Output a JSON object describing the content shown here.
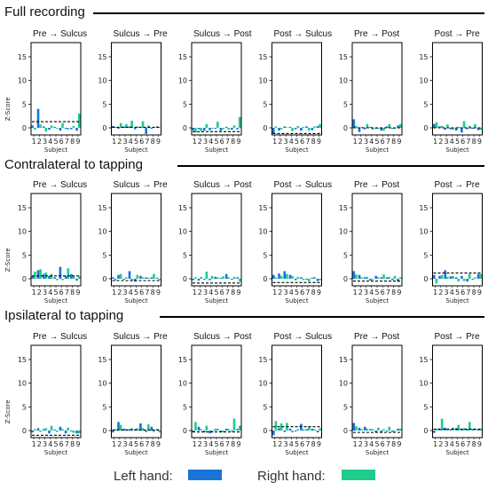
{
  "legend": {
    "left_label": "Left hand:",
    "right_label": "Right hand:",
    "left_color": "#1a73d9",
    "right_color": "#1fcc8c"
  },
  "chart_data": {
    "type": "bar",
    "ylabel": "Z-Score",
    "xlabel": "Subject",
    "yticks": [
      0,
      5,
      10,
      15
    ],
    "ylim": [
      -1.5,
      18
    ],
    "subjects": [
      "1",
      "2",
      "3",
      "4",
      "5",
      "6",
      "7",
      "8",
      "9"
    ],
    "series_names": [
      "Left hand",
      "Right hand"
    ],
    "sections": [
      {
        "title": "Full recording",
        "panels": [
          {
            "title": "Pre → Sulcus",
            "left": [
              0.5,
              4.0,
              0.3,
              -0.4,
              0.2,
              -0.6,
              -0.2,
              -0.3,
              -0.6
            ],
            "right": [
              -0.4,
              0.7,
              -0.8,
              0.5,
              -0.2,
              1.0,
              -0.4,
              0.4,
              3.0
            ],
            "threshold": 1.3
          },
          {
            "title": "Sulcus → Pre",
            "left": [
              0.4,
              -0.2,
              0.3,
              0.3,
              -0.3,
              0.1,
              -1.3,
              -0.2,
              0.3
            ],
            "right": [
              0.2,
              1.0,
              0.8,
              1.5,
              0.3,
              1.4,
              0.5,
              0.1,
              0.1
            ],
            "threshold": 0.1
          },
          {
            "title": "Sulcus → Post",
            "left": [
              -0.5,
              -0.3,
              -0.6,
              -0.5,
              -0.2,
              -0.6,
              0.2,
              -0.4,
              -0.3
            ],
            "right": [
              -1.0,
              -0.7,
              0.8,
              -0.2,
              1.3,
              -0.3,
              -0.4,
              0.5,
              2.3
            ],
            "threshold": -0.8
          },
          {
            "title": "Post → Sulcus",
            "left": [
              -1.2,
              -0.6,
              0.3,
              0.2,
              -0.3,
              -0.6,
              0.3,
              -0.5,
              0.4
            ],
            "right": [
              0.3,
              -0.3,
              0.1,
              -0.7,
              0.4,
              0.2,
              -0.6,
              0.3,
              0.8
            ],
            "threshold": -1.2
          },
          {
            "title": "Pre → Post",
            "left": [
              1.8,
              -0.9,
              -0.3,
              0.2,
              -0.2,
              -0.6,
              0.3,
              -0.2,
              0.5
            ],
            "right": [
              0.4,
              0.2,
              0.8,
              -0.4,
              -0.2,
              -0.6,
              0.8,
              -0.2,
              0.8
            ],
            "threshold": 0.0
          },
          {
            "title": "Post → Pre",
            "left": [
              0.8,
              0.3,
              -0.4,
              -0.3,
              -0.6,
              -1.0,
              -0.3,
              -0.2,
              -0.5
            ],
            "right": [
              1.2,
              0.4,
              0.7,
              -0.4,
              0.2,
              1.4,
              0.4,
              0.8,
              -0.4
            ],
            "threshold": 0.0
          }
        ]
      },
      {
        "title": "Contralateral to tapping",
        "panels": [
          {
            "title": "Pre → Sulcus",
            "left": [
              0.5,
              1.8,
              1.0,
              0.6,
              0.3,
              2.5,
              0.6,
              1.0,
              -0.4
            ],
            "right": [
              1.5,
              2.0,
              1.3,
              1.0,
              -0.3,
              -0.3,
              2.2,
              0.5,
              0.5
            ],
            "threshold": 0.6
          },
          {
            "title": "Sulcus → Pre",
            "left": [
              0.3,
              0.8,
              -0.2,
              1.6,
              -0.6,
              0.6,
              0.3,
              0.3,
              0.2
            ],
            "right": [
              -0.4,
              1.0,
              0.3,
              -0.4,
              0.8,
              0.3,
              0.2,
              1.0,
              -0.3
            ],
            "threshold": -0.4
          },
          {
            "title": "Sulcus → Post",
            "left": [
              -0.3,
              -0.4,
              -0.2,
              -0.3,
              0.4,
              0.2,
              1.0,
              -0.2,
              0.3
            ],
            "right": [
              0.3,
              0.4,
              1.5,
              0.6,
              0.3,
              0.5,
              0.3,
              0.4,
              -0.6
            ],
            "threshold": -0.9
          },
          {
            "title": "Post → Sulcus",
            "left": [
              0.8,
              1.1,
              1.6,
              0.8,
              -0.3,
              0.3,
              -0.2,
              0.2,
              -0.5
            ],
            "right": [
              0.3,
              0.6,
              1.0,
              0.6,
              0.4,
              -0.3,
              -0.6,
              0.4,
              -0.3
            ],
            "threshold": -0.8
          },
          {
            "title": "Pre → Post",
            "left": [
              1.6,
              0.8,
              0.3,
              -0.4,
              0.6,
              0.3,
              0.3,
              -0.3,
              -0.6
            ],
            "right": [
              0.9,
              0.3,
              0.4,
              -0.2,
              0.3,
              0.9,
              0.4,
              0.6,
              0.3
            ],
            "threshold": -0.5
          },
          {
            "title": "Post → Pre",
            "left": [
              0.8,
              0.6,
              1.8,
              0.5,
              0.3,
              0.6,
              -0.6,
              -0.2,
              1.0
            ],
            "right": [
              -1.0,
              0.8,
              0.4,
              0.6,
              -0.6,
              -0.5,
              1.0,
              0.3,
              1.0
            ],
            "threshold": 1.2
          }
        ]
      },
      {
        "title": "Ipsilateral to tapping",
        "panels": [
          {
            "title": "Pre → Sulcus",
            "left": [
              -0.4,
              0.5,
              0.3,
              -0.6,
              0.2,
              0.8,
              -0.6,
              -0.2,
              -0.6
            ],
            "right": [
              0.3,
              -0.3,
              0.5,
              1.0,
              -0.3,
              0.3,
              0.6,
              -0.5,
              -0.6
            ],
            "threshold": -1.0
          },
          {
            "title": "Sulcus → Pre",
            "left": [
              -0.4,
              1.8,
              0.4,
              0.3,
              0.3,
              1.5,
              -0.3,
              0.8,
              0.3
            ],
            "right": [
              0.3,
              1.2,
              0.3,
              0.5,
              0.5,
              0.5,
              1.3,
              -0.3,
              -0.4
            ],
            "threshold": 0.1
          },
          {
            "title": "Sulcus → Post",
            "left": [
              -0.3,
              0.8,
              -0.4,
              -0.6,
              0.3,
              -0.3,
              0.4,
              -0.2,
              0.3
            ],
            "right": [
              1.8,
              0.3,
              1.0,
              -0.4,
              0.4,
              -0.4,
              0.3,
              2.5,
              1.0
            ],
            "threshold": -0.3
          },
          {
            "title": "Post → Sulcus",
            "left": [
              -1.0,
              0.5,
              -0.3,
              0.4,
              -0.2,
              1.4,
              0.3,
              0.4,
              -0.4
            ],
            "right": [
              2.0,
              1.5,
              1.6,
              -0.4,
              0.3,
              0.3,
              0.8,
              0.3,
              0.5
            ],
            "threshold": 0.8
          },
          {
            "title": "Pre → Post",
            "left": [
              1.6,
              0.6,
              0.8,
              0.3,
              -0.4,
              -0.4,
              -0.2,
              -0.3,
              0.4
            ],
            "right": [
              0.9,
              0.3,
              0.4,
              0.3,
              0.6,
              0.3,
              0.8,
              -0.2,
              0.4
            ],
            "threshold": -0.4
          },
          {
            "title": "Post → Pre",
            "left": [
              -0.5,
              0.3,
              0.6,
              0.2,
              0.5,
              0.3,
              0.3,
              0.3,
              0.3
            ],
            "right": [
              0.4,
              2.5,
              0.3,
              0.6,
              1.2,
              0.5,
              1.8,
              0.4,
              0.4
            ],
            "threshold": 0.3
          }
        ]
      }
    ]
  }
}
